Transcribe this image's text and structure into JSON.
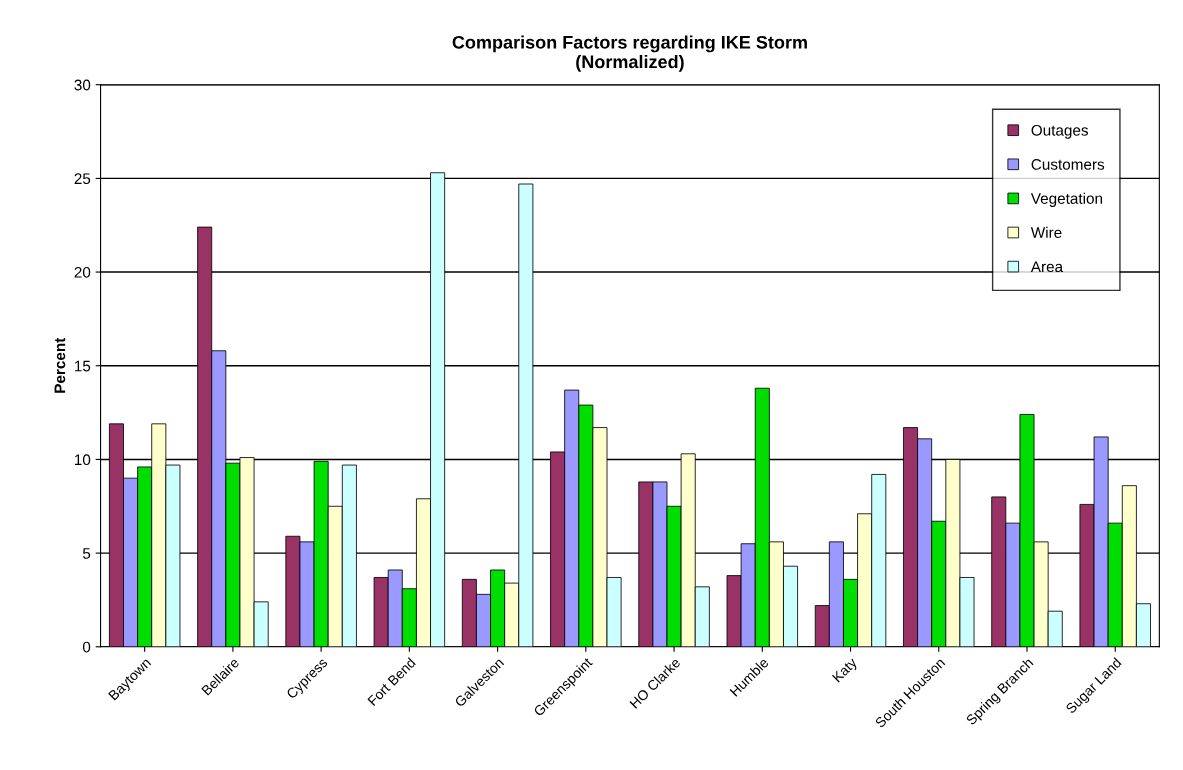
{
  "chart_data": {
    "type": "bar",
    "title": "Comparison Factors regarding IKE Storm\n(Normalized)",
    "ylabel": "Percent",
    "categories": [
      "Baytown",
      "Bellaire",
      "Cypress",
      "Fort Bend",
      "Galveston",
      "Greenspoint",
      "HO Clarke",
      "Humble",
      "Katy",
      "South Houston",
      "Spring Branch",
      "Sugar Land"
    ],
    "series": [
      {
        "name": "Outages",
        "color": "#993366",
        "values": [
          11.9,
          22.4,
          5.9,
          3.7,
          3.6,
          10.4,
          8.8,
          3.8,
          2.2,
          11.7,
          8.0,
          7.6
        ]
      },
      {
        "name": "Customers",
        "color": "#9999ff",
        "values": [
          9.0,
          15.8,
          5.6,
          4.1,
          2.8,
          13.7,
          8.8,
          5.5,
          5.6,
          11.1,
          6.6,
          11.2
        ]
      },
      {
        "name": "Vegetation",
        "color": "#00dd00",
        "values": [
          9.6,
          9.8,
          9.9,
          3.1,
          4.1,
          12.9,
          7.5,
          13.8,
          3.6,
          6.7,
          12.4,
          6.6
        ]
      },
      {
        "name": "Wire",
        "color": "#ffffcc",
        "values": [
          11.9,
          10.1,
          7.5,
          7.9,
          3.4,
          11.7,
          10.3,
          5.6,
          7.1,
          10.0,
          5.6,
          8.6
        ]
      },
      {
        "name": "Area",
        "color": "#ccffff",
        "values": [
          9.7,
          2.4,
          9.7,
          25.3,
          24.7,
          3.7,
          3.2,
          4.3,
          9.2,
          3.7,
          1.9,
          2.3
        ]
      }
    ],
    "ylim": [
      0,
      30
    ],
    "yticks": [
      0,
      5,
      10,
      15,
      20,
      25,
      30
    ],
    "grid": "y",
    "legend": "top right"
  }
}
